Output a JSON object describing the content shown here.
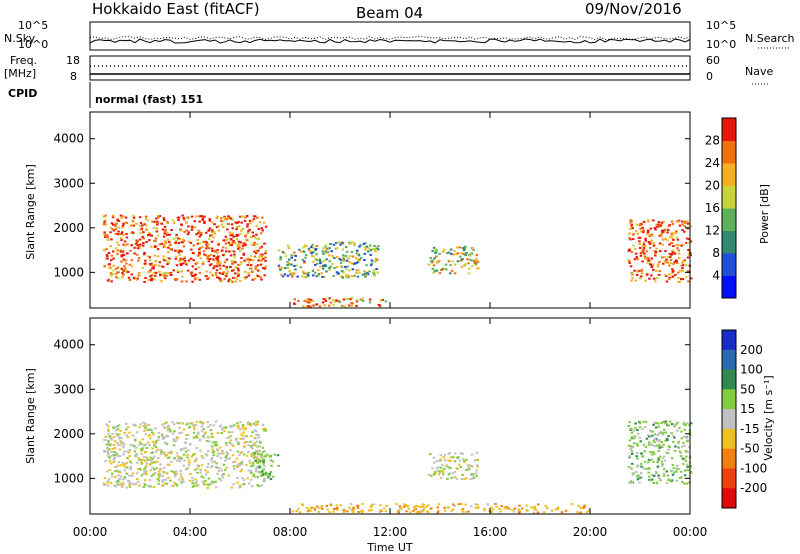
{
  "header": {
    "radar": "Hokkaido East (fitACF)",
    "beam": "Beam 04",
    "date": "09/Nov/2016"
  },
  "noise_panel": {
    "left_label": "N.Sky",
    "right_label": "N.Search",
    "left_ticks": [
      "10^5",
      "10^0"
    ],
    "right_ticks": [
      "10^5",
      "10^0"
    ]
  },
  "freq_panel": {
    "left_label_1": "Freq.",
    "left_label_2": "[MHz]",
    "right_label": "Nave",
    "left_ticks": [
      "18",
      "8"
    ],
    "right_ticks": [
      "60",
      "0"
    ]
  },
  "cpid_panel": {
    "label": "CPID",
    "mode_text": "normal (fast) 151"
  },
  "time_axis": {
    "label": "Time UT",
    "ticks": [
      "00:00",
      "04:00",
      "08:00",
      "12:00",
      "16:00",
      "20:00",
      "00:00"
    ]
  },
  "power_panel": {
    "ylabel": "Slant Range [km]",
    "ytick_labels": [
      "1000",
      "2000",
      "3000",
      "4000"
    ],
    "colorbar_label": "Power [dB]",
    "colorbar_ticks": [
      "4",
      "8",
      "12",
      "16",
      "20",
      "24",
      "28"
    ],
    "colorbar_colors": [
      "#0010ff",
      "#1e4fd8",
      "#2f8a70",
      "#5fb05a",
      "#c8d43a",
      "#f4b020",
      "#f07010",
      "#e81808"
    ]
  },
  "velocity_panel": {
    "ylabel": "Slant Range [km]",
    "ytick_labels": [
      "1000",
      "2000",
      "3000",
      "4000"
    ],
    "colorbar_label": "Velocity [m s⁻¹]",
    "colorbar_ticks": [
      "200",
      "100",
      "50",
      "15",
      "-15",
      "-50",
      "-100",
      "-200"
    ],
    "colorbar_colors": [
      "#1a2cc8",
      "#2a6ab0",
      "#2f8a50",
      "#80cc40",
      "#c0c0c0",
      "#f0c020",
      "#f08010",
      "#f04010",
      "#e00808"
    ]
  },
  "chart_data": {
    "type": "heatmap",
    "x_axis": {
      "label": "Time UT",
      "range_hours": [
        0,
        24
      ]
    },
    "y_axis": {
      "label": "Slant Range [km]",
      "range": [
        200,
        4600
      ]
    },
    "panels": [
      {
        "name": "Power [dB]",
        "color_range": [
          0,
          30
        ],
        "echo_regions": [
          {
            "t_start": 0.5,
            "t_end": 7.0,
            "range_low": 800,
            "range_high": 2300,
            "dominant_power": 26
          },
          {
            "t_start": 7.5,
            "t_end": 11.5,
            "range_low": 900,
            "range_high": 1700,
            "dominant_power": 14
          },
          {
            "t_start": 8.0,
            "t_end": 12.0,
            "range_low": 250,
            "range_high": 450,
            "dominant_power": 22
          },
          {
            "t_start": 13.5,
            "t_end": 15.5,
            "range_low": 1000,
            "range_high": 1600,
            "dominant_power": 16
          },
          {
            "t_start": 21.5,
            "t_end": 24.0,
            "range_low": 800,
            "range_high": 2200,
            "dominant_power": 26
          }
        ]
      },
      {
        "name": "Velocity [m s⁻¹]",
        "color_range": [
          -200,
          200
        ],
        "echo_regions": [
          {
            "t_start": 0.5,
            "t_end": 7.0,
            "range_low": 800,
            "range_high": 2300,
            "dominant_velocity": 0
          },
          {
            "t_start": 6.5,
            "t_end": 7.5,
            "range_low": 1000,
            "range_high": 1600,
            "dominant_velocity": 40
          },
          {
            "t_start": 8.0,
            "t_end": 20.0,
            "range_low": 250,
            "range_high": 450,
            "dominant_velocity": -40
          },
          {
            "t_start": 13.5,
            "t_end": 15.5,
            "range_low": 1000,
            "range_high": 1600,
            "dominant_velocity": 0
          },
          {
            "t_start": 21.5,
            "t_end": 24.0,
            "range_low": 900,
            "range_high": 2300,
            "dominant_velocity": 30
          }
        ]
      }
    ]
  }
}
